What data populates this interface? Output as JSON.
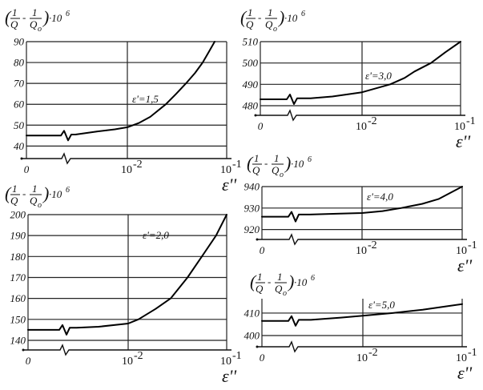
{
  "chart_data": [
    {
      "type": "line",
      "ylabel": {
        "open": "(",
        "num": "1",
        "den": "Q",
        "minus": "-",
        "num2": "1",
        "den2": "Q",
        "den2_sub": "o",
        "close": ")",
        "mult": "·10",
        "exp": "6"
      },
      "xlabel": "ε''",
      "x_scale": "log with break, 0 at origin",
      "x_ticks": [
        {
          "label": "0",
          "value": 0
        },
        {
          "label": "10",
          "sup": "-2",
          "value": 0.01
        },
        {
          "label": "10",
          "sup": "-1",
          "value": 0.1
        }
      ],
      "y_ticks": [
        40,
        50,
        60,
        70,
        80,
        90
      ],
      "ylim": [
        34,
        90
      ],
      "annotation": "ε'=1,5",
      "series": [
        {
          "points": [
            [
              0,
              45
            ],
            [
              0.003,
              45.5
            ],
            [
              0.005,
              47
            ],
            [
              0.0075,
              48
            ],
            [
              0.01,
              49
            ],
            [
              0.013,
              51
            ],
            [
              0.017,
              54
            ],
            [
              0.0244,
              60
            ],
            [
              0.031,
              65
            ],
            [
              0.0389,
              70
            ],
            [
              0.048,
              75
            ],
            [
              0.0573,
              80
            ],
            [
              0.066,
              85
            ],
            [
              0.0757,
              90
            ]
          ]
        }
      ],
      "grid": true
    },
    {
      "type": "line",
      "ylabel": {
        "open": "(",
        "num": "1",
        "den": "Q",
        "minus": "-",
        "num2": "1",
        "den2": "Q",
        "den2_sub": "o",
        "close": ")",
        "mult": "·10",
        "exp": "6"
      },
      "xlabel": "ε''",
      "x_ticks": [
        {
          "label": "0",
          "value": 0
        },
        {
          "label": "10",
          "sup": "-2",
          "value": 0.01
        },
        {
          "label": "10",
          "sup": "-1",
          "value": 0.1
        }
      ],
      "y_ticks": [
        480,
        490,
        500,
        510
      ],
      "ylim": [
        475.5,
        510
      ],
      "annotation": "ε'=3,0",
      "series": [
        {
          "points": [
            [
              0,
              483
            ],
            [
              0.003,
              483.5
            ],
            [
              0.005,
              484.3
            ],
            [
              0.01,
              486.3
            ],
            [
              0.0193,
              490
            ],
            [
              0.027,
              493
            ],
            [
              0.034,
              496
            ],
            [
              0.05,
              500
            ],
            [
              0.07,
              505
            ],
            [
              0.1,
              510
            ]
          ]
        }
      ],
      "grid": true
    },
    {
      "type": "line",
      "ylabel": {
        "open": "(",
        "num": "1",
        "den": "Q",
        "minus": "-",
        "num2": "1",
        "den2": "Q",
        "den2_sub": "o",
        "close": ")",
        "mult": "·10",
        "exp": "6"
      },
      "xlabel": "ε''",
      "x_ticks": [
        {
          "label": "0",
          "value": 0
        },
        {
          "label": "10",
          "sup": "-2",
          "value": 0.01
        },
        {
          "label": "10",
          "sup": "-1",
          "value": 0.1
        }
      ],
      "y_ticks": [
        140,
        150,
        160,
        170,
        180,
        190,
        200
      ],
      "ylim": [
        135.4,
        200
      ],
      "annotation": "ε'=2,0",
      "series": [
        {
          "points": [
            [
              0,
              145
            ],
            [
              0.003,
              146
            ],
            [
              0.005,
              146.5
            ],
            [
              0.01,
              148
            ],
            [
              0.0127,
              150
            ],
            [
              0.019,
              155
            ],
            [
              0.027,
              160
            ],
            [
              0.04,
              170
            ],
            [
              0.056,
              180
            ],
            [
              0.078,
              190
            ],
            [
              0.1,
              200
            ]
          ]
        }
      ],
      "grid": true
    },
    {
      "type": "line",
      "ylabel": {
        "open": "(",
        "num": "1",
        "den": "Q",
        "minus": "-",
        "num2": "1",
        "den2": "Q",
        "den2_sub": "o",
        "close": ")",
        "mult": "·10",
        "exp": "6"
      },
      "xlabel": "ε''",
      "x_ticks": [
        {
          "label": "0",
          "value": 0
        },
        {
          "label": "10",
          "sup": "-2",
          "value": 0.01
        },
        {
          "label": "10",
          "sup": "-1",
          "value": 0.1
        }
      ],
      "y_ticks": [
        920,
        930,
        940
      ],
      "ylim": [
        915.4,
        940
      ],
      "annotation": "ε'=4,0",
      "series": [
        {
          "points": [
            [
              0,
              926
            ],
            [
              0.003,
              927
            ],
            [
              0.006,
              927.4
            ],
            [
              0.01,
              927.7
            ],
            [
              0.016,
              928.6
            ],
            [
              0.0245,
              930
            ],
            [
              0.04,
              932
            ],
            [
              0.058,
              934.2
            ],
            [
              0.1,
              940
            ]
          ]
        }
      ],
      "grid": true
    },
    {
      "type": "line",
      "ylabel": {
        "open": "(",
        "num": "1",
        "den": "Q",
        "minus": "-",
        "num2": "1",
        "den2": "Q",
        "den2_sub": "o",
        "close": ")",
        "mult": "·10",
        "exp": "6"
      },
      "xlabel": "ε''",
      "x_ticks": [
        {
          "label": "0",
          "value": 0
        },
        {
          "label": "10",
          "sup": "-2",
          "value": 0.01
        },
        {
          "label": "10",
          "sup": "-1",
          "value": 0.1
        }
      ],
      "y_ticks": [
        400,
        410
      ],
      "ylim": [
        395,
        416.4
      ],
      "annotation": "ε'=5,0",
      "series": [
        {
          "points": [
            [
              0,
              406.5
            ],
            [
              0.003,
              407
            ],
            [
              0.006,
              408
            ],
            [
              0.01,
              408.8
            ],
            [
              0.02,
              410
            ],
            [
              0.04,
              411.5
            ],
            [
              0.1,
              414
            ]
          ]
        }
      ],
      "grid": true
    }
  ]
}
